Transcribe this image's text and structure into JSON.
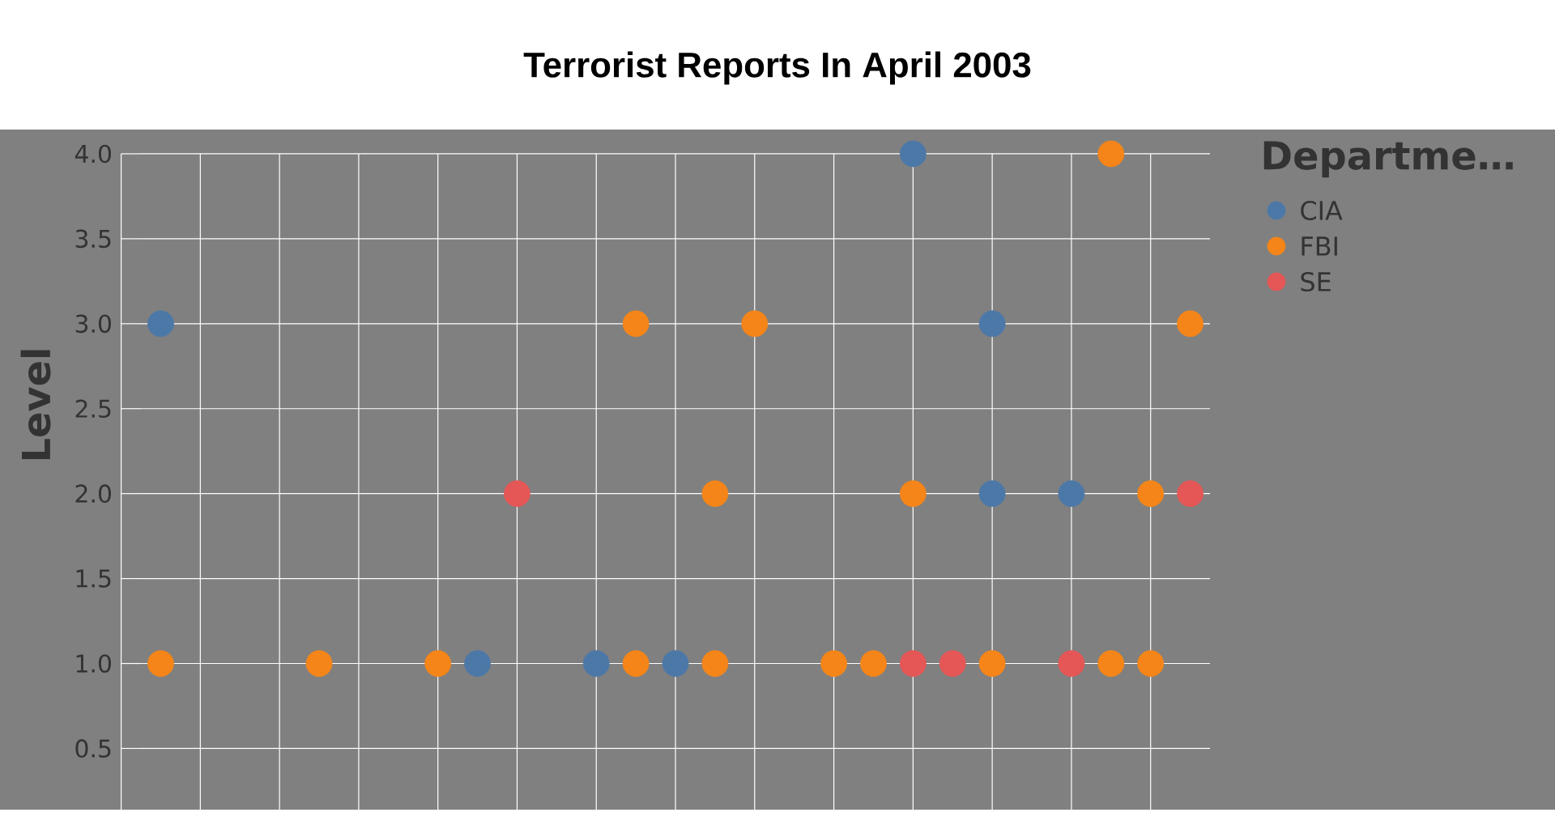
{
  "chart_data": {
    "type": "scatter",
    "title": "Terrorist Reports In April 2003",
    "ylabel": "Level",
    "legend_title": "Departme…",
    "categories": [
      null,
      null,
      null,
      null,
      null,
      null,
      null,
      null,
      null,
      null,
      null,
      null,
      null,
      null,
      null,
      null,
      null,
      null,
      null,
      null,
      null,
      null,
      null,
      null,
      null,
      null,
      null
    ],
    "ylim": [
      0.14,
      4
    ],
    "yticks": [
      {
        "value": 0.5,
        "label": "0.5"
      },
      {
        "value": 1,
        "label": "1.0"
      },
      {
        "value": 1.5,
        "label": "1.5"
      },
      {
        "value": 2,
        "label": "2.0"
      },
      {
        "value": 2.5,
        "label": "2.5"
      },
      {
        "value": 3,
        "label": "3.0"
      },
      {
        "value": 3.5,
        "label": "3.5"
      },
      {
        "value": 4,
        "label": "4.0"
      }
    ],
    "tick_labels": "y",
    "grid": true,
    "legend": "top right",
    "marker": "circle",
    "series": [
      {
        "name": "CIA",
        "color": "#4c78a8",
        "values": [
          3,
          null,
          null,
          null,
          null,
          null,
          null,
          null,
          1,
          null,
          null,
          1,
          null,
          1,
          null,
          null,
          null,
          null,
          null,
          4,
          null,
          3,
          null,
          2,
          null,
          null,
          null
        ]
      },
      {
        "color": "#4c78a8",
        "values": [
          null,
          null,
          null,
          null,
          null,
          null,
          null,
          null,
          null,
          null,
          null,
          null,
          null,
          null,
          null,
          null,
          null,
          null,
          null,
          null,
          null,
          2,
          null,
          null,
          null,
          null,
          null
        ]
      },
      {
        "name": "FBI",
        "color": "#f58518",
        "values": [
          1,
          null,
          null,
          null,
          1,
          null,
          null,
          1,
          null,
          null,
          null,
          null,
          3,
          null,
          2,
          3,
          null,
          1,
          1,
          2,
          null,
          1,
          null,
          null,
          4,
          2,
          3
        ]
      },
      {
        "color": "#f58518",
        "values": [
          null,
          null,
          null,
          null,
          null,
          null,
          null,
          null,
          null,
          null,
          null,
          null,
          1,
          null,
          1,
          null,
          null,
          null,
          null,
          null,
          null,
          null,
          null,
          null,
          1,
          1,
          null
        ]
      },
      {
        "name": "SE",
        "color": "#e45756",
        "values": [
          null,
          null,
          null,
          null,
          null,
          null,
          null,
          null,
          null,
          2,
          null,
          null,
          null,
          null,
          null,
          null,
          null,
          null,
          null,
          1,
          1,
          null,
          null,
          1,
          null,
          null,
          2
        ]
      }
    ]
  }
}
